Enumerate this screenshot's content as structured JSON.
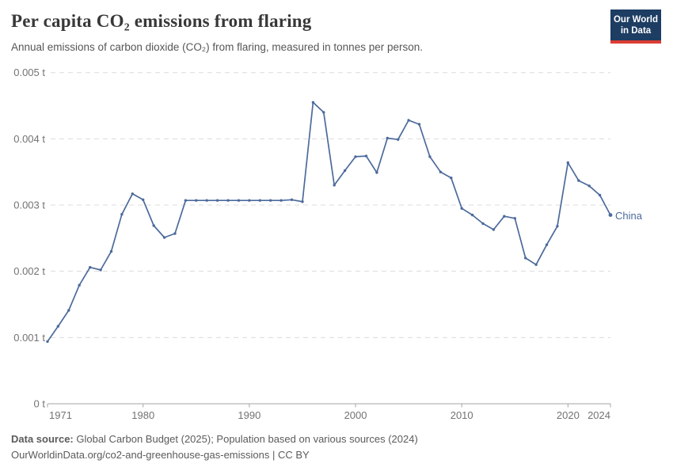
{
  "header": {
    "title": "Per capita CO₂ emissions from flaring",
    "subtitle": "Annual emissions of carbon dioxide (CO₂) from flaring, measured in tonnes per person.",
    "logo": {
      "line1": "Our World",
      "line2": "in Data",
      "bg_color": "#1d3d63",
      "accent_color": "#dc3d33"
    }
  },
  "chart_data": {
    "type": "line",
    "title": "Per capita CO₂ emissions from flaring",
    "xlabel": "",
    "ylabel": "",
    "unit": "t",
    "grid": "horizontal-dashed",
    "legend": "inline-end-of-line-label",
    "xlim": [
      1971,
      2024
    ],
    "ylim": [
      0,
      0.005
    ],
    "x_ticks": [
      {
        "year": 1971,
        "label": "1971"
      },
      {
        "year": 1980,
        "label": "1980"
      },
      {
        "year": 1990,
        "label": "1990"
      },
      {
        "year": 2000,
        "label": "2000"
      },
      {
        "year": 2010,
        "label": "2010"
      },
      {
        "year": 2020,
        "label": "2020"
      },
      {
        "year": 2024,
        "label": "2024"
      }
    ],
    "y_ticks": [
      {
        "value": 0,
        "label": "0 t"
      },
      {
        "value": 0.001,
        "label": "0.001 t"
      },
      {
        "value": 0.002,
        "label": "0.002 t"
      },
      {
        "value": 0.003,
        "label": "0.003 t"
      },
      {
        "value": 0.004,
        "label": "0.004 t"
      },
      {
        "value": 0.005,
        "label": "0.005 t"
      }
    ],
    "series": [
      {
        "name": "China",
        "color": "#4c6a9c",
        "x": [
          1971,
          1972,
          1973,
          1974,
          1975,
          1976,
          1977,
          1978,
          1979,
          1980,
          1981,
          1982,
          1983,
          1984,
          1985,
          1986,
          1987,
          1988,
          1989,
          1990,
          1991,
          1992,
          1993,
          1994,
          1995,
          1996,
          1997,
          1998,
          1999,
          2000,
          2001,
          2002,
          2003,
          2004,
          2005,
          2006,
          2007,
          2008,
          2009,
          2010,
          2011,
          2012,
          2013,
          2014,
          2015,
          2016,
          2017,
          2018,
          2019,
          2020,
          2021,
          2022,
          2023,
          2024
        ],
        "values": [
          0.00094,
          0.00117,
          0.00141,
          0.00179,
          0.00206,
          0.00202,
          0.0023,
          0.00286,
          0.00317,
          0.00308,
          0.00269,
          0.00251,
          0.00257,
          0.00307,
          0.00307,
          0.00307,
          0.00307,
          0.00307,
          0.00307,
          0.00307,
          0.00307,
          0.00307,
          0.00307,
          0.00308,
          0.00305,
          0.00455,
          0.0044,
          0.0033,
          0.00352,
          0.00373,
          0.00374,
          0.00349,
          0.00401,
          0.00399,
          0.00428,
          0.00422,
          0.00373,
          0.0035,
          0.00341,
          0.00295,
          0.00285,
          0.00272,
          0.00263,
          0.00283,
          0.0028,
          0.0022,
          0.0021,
          0.0024,
          0.00268,
          0.00364,
          0.00337,
          0.00329,
          0.00315,
          0.00285
        ]
      }
    ]
  },
  "footer": {
    "source_label": "Data source:",
    "source_text": " Global Carbon Budget (2025); Population based on various sources (2024)",
    "link_line": "OurWorldinData.org/co2-and-greenhouse-gas-emissions | CC BY"
  }
}
